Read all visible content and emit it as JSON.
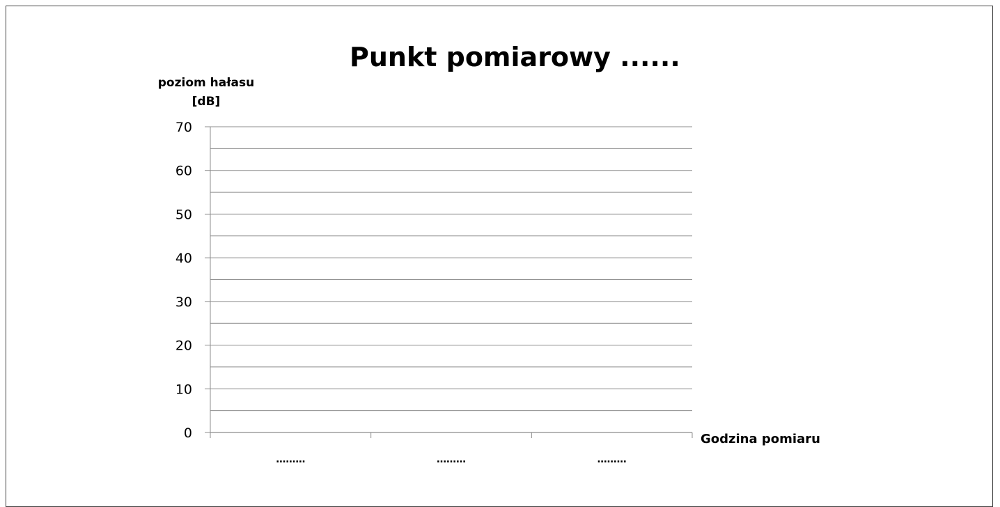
{
  "chart_data": {
    "type": "bar",
    "title": "Punkt pomiarowy ......",
    "ylabel_line1": "poziom hałasu",
    "ylabel_line2": "[dB]",
    "xlabel": "Godzina pomiaru",
    "categories": [
      "………",
      "………",
      "………"
    ],
    "values": [
      null,
      null,
      null
    ],
    "ylim": [
      0,
      70
    ],
    "yticks": [
      0,
      10,
      20,
      30,
      40,
      50,
      60,
      70
    ],
    "minor_gridlines": true,
    "grid": true,
    "colors": {
      "gridline": "#8c8c8c",
      "axis": "#8c8c8c",
      "frame": "#404040"
    }
  }
}
